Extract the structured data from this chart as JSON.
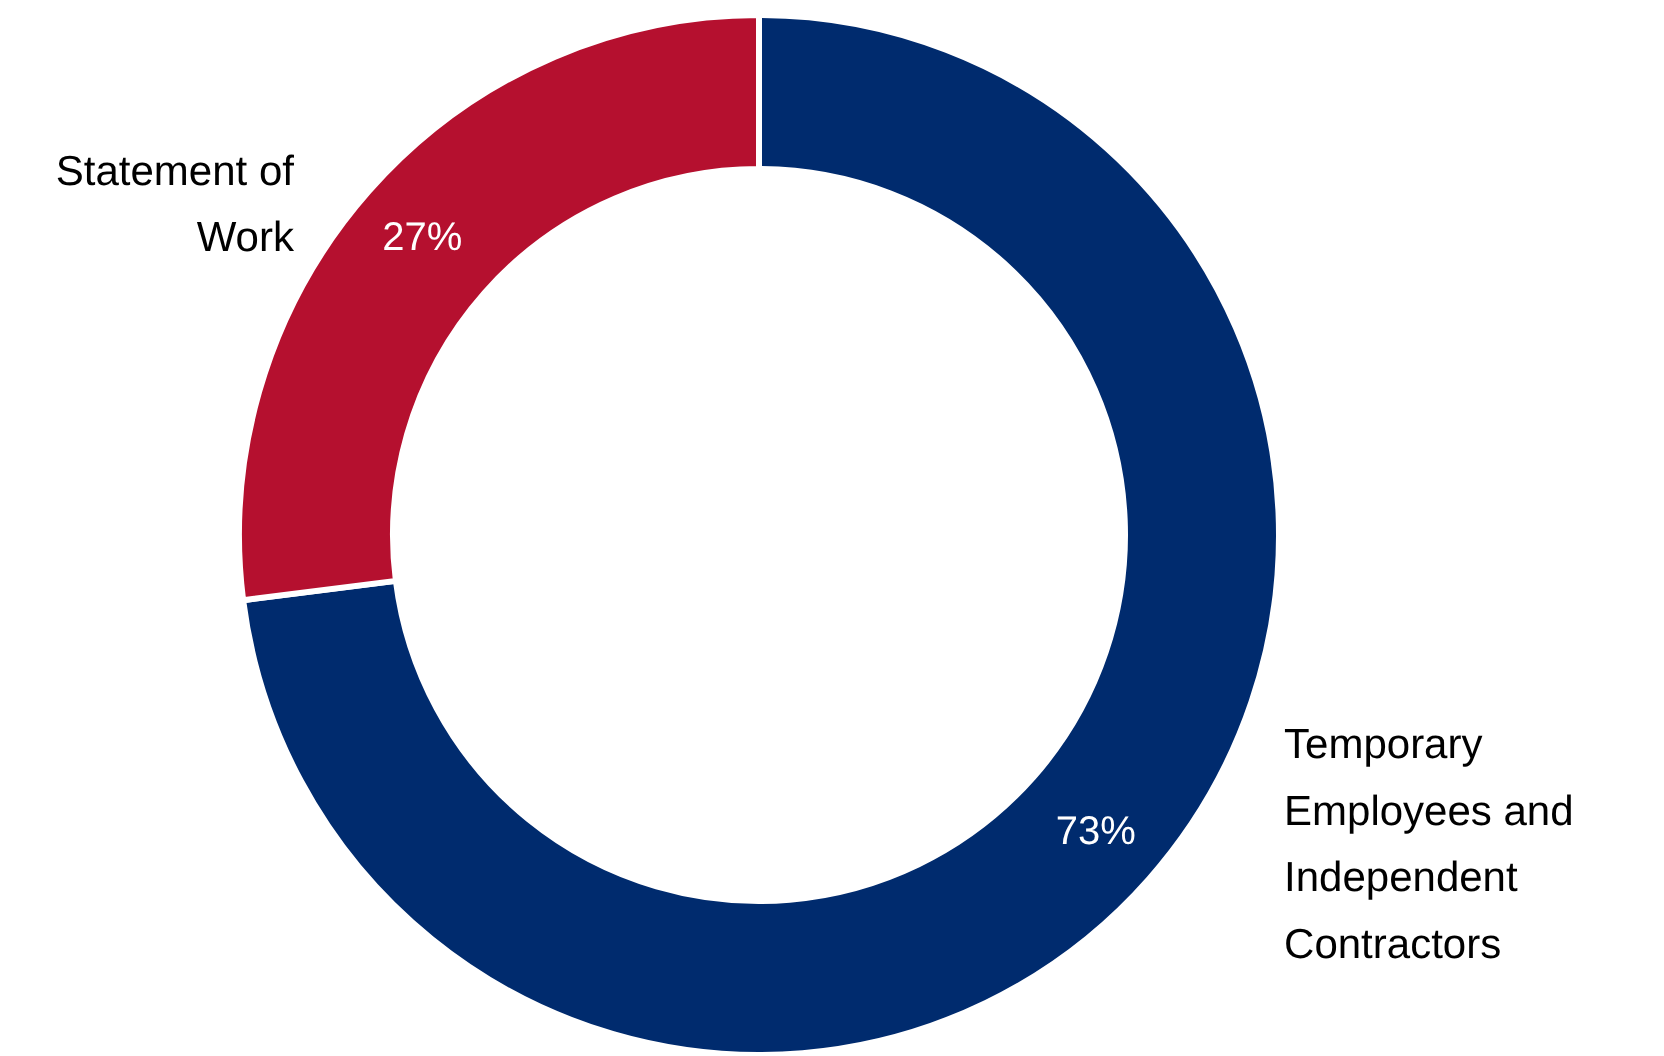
{
  "chart_data": {
    "type": "donut",
    "categories": [
      "Temporary Employees and Independent Contractors",
      "Statement of Work"
    ],
    "values": [
      73,
      27
    ],
    "colors": [
      "#002b6e",
      "#b5102f"
    ],
    "value_labels": [
      "73%",
      "27%"
    ]
  }
}
